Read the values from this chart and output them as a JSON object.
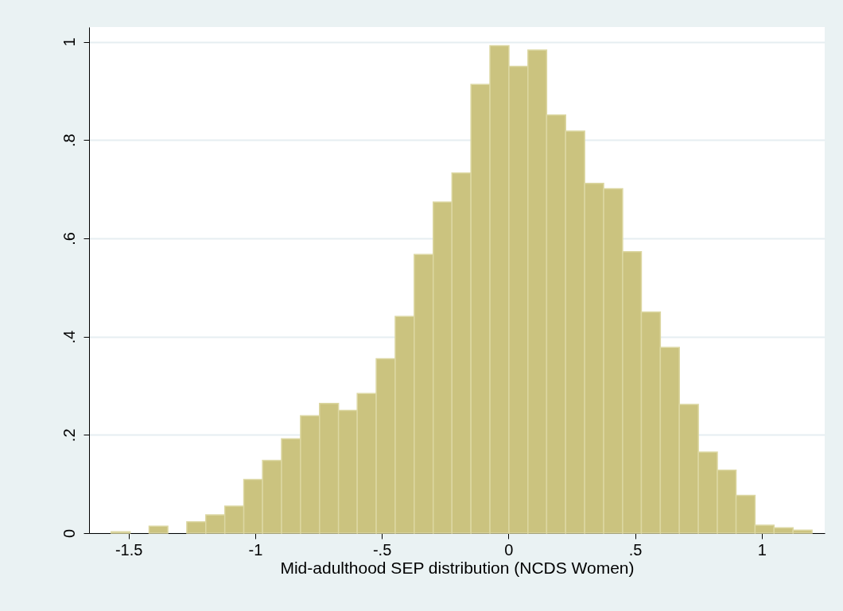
{
  "chart_data": {
    "type": "histogram",
    "xlabel": "Mid-adulthood SEP distribution (NCDS Women)",
    "bins": [
      -1.569,
      -1.494,
      -1.419,
      -1.345,
      -1.27,
      -1.195,
      -1.12,
      -1.045,
      -0.971,
      -0.896,
      -0.821,
      -0.746,
      -0.671,
      -0.597,
      -0.522,
      -0.447,
      -0.372,
      -0.297,
      -0.223,
      -0.148,
      -0.073,
      0.002,
      0.077,
      0.151,
      0.226,
      0.301,
      0.376,
      0.451,
      0.525,
      0.6,
      0.675,
      0.75,
      0.825,
      0.899,
      0.974,
      1.049,
      1.124,
      1.199
    ],
    "values": [
      0.003,
      0,
      0.014,
      0,
      0.023,
      0.037,
      0.055,
      0.109,
      0.148,
      0.192,
      0.239,
      0.264,
      0.25,
      0.284,
      0.355,
      0.441,
      0.567,
      0.674,
      0.733,
      0.913,
      0.992,
      0.95,
      0.983,
      0.851,
      0.818,
      0.712,
      0.701,
      0.573,
      0.45,
      0.378,
      0.262,
      0.165,
      0.128,
      0.077,
      0.016,
      0.011,
      0.006
    ],
    "color": "#cbc37f",
    "xlim": [
      -1.656,
      1.249
    ],
    "ylim": [
      0,
      1.03
    ],
    "xticks": [
      {
        "value": -1.5,
        "label": "-1.5"
      },
      {
        "value": -1,
        "label": "-1"
      },
      {
        "value": -0.5,
        "label": "-.5"
      },
      0,
      {
        "value": 0.5,
        "label": ".5"
      },
      1
    ],
    "yticks": [
      0,
      {
        "value": 0.2,
        "label": ".2"
      },
      {
        "value": 0.4,
        "label": ".4"
      },
      {
        "value": 0.6,
        "label": ".6"
      },
      {
        "value": 0.8,
        "label": ".8"
      },
      1
    ],
    "grid": "y"
  }
}
